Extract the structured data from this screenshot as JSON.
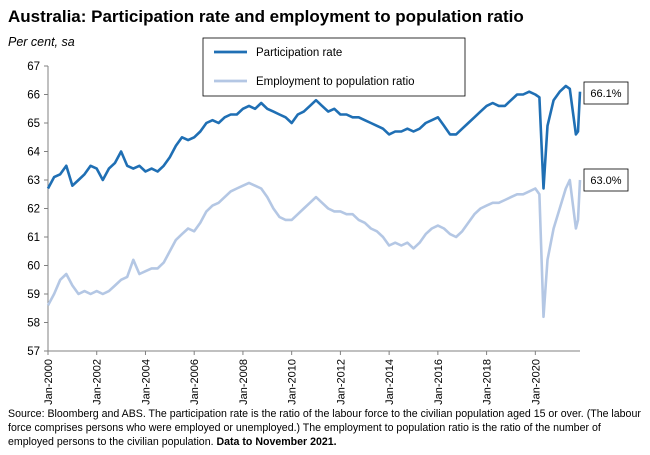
{
  "title": "Australia: Participation rate and employment to population ratio",
  "subtitle": "Per cent, sa",
  "source_note": "Source: Bloomberg and ABS.  The participation rate is the ratio of the labour force to the civilian population aged 15 or over.  (The labour force comprises persons who were employed or unemployed.)  The employment to population ratio is the ratio of the number of employed persons to the civilian population.",
  "data_note": "Data to November 2021.",
  "colors": {
    "participation": "#1f6fb4",
    "employment": "#b4c7e4",
    "axis": "#808080"
  },
  "chart_data": {
    "type": "line",
    "xlabel": "",
    "ylabel": "",
    "ylim": [
      57,
      67
    ],
    "yticks": [
      "57",
      "58",
      "59",
      "60",
      "61",
      "62",
      "63",
      "64",
      "65",
      "66",
      "67"
    ],
    "xticks": [
      "Jan-2000",
      "Jan-2002",
      "Jan-2004",
      "Jan-2006",
      "Jan-2008",
      "Jan-2010",
      "Jan-2012",
      "Jan-2014",
      "Jan-2016",
      "Jan-2018",
      "Jan-2020"
    ],
    "grid": false,
    "legend": "top-center",
    "series": [
      {
        "name": "Participation rate",
        "end_label": "66.1%",
        "points": [
          [
            "2000-01",
            62.7
          ],
          [
            "2000-04",
            63.1
          ],
          [
            "2000-07",
            63.2
          ],
          [
            "2000-10",
            63.5
          ],
          [
            "2001-01",
            62.8
          ],
          [
            "2001-04",
            63.0
          ],
          [
            "2001-07",
            63.2
          ],
          [
            "2001-10",
            63.5
          ],
          [
            "2002-01",
            63.4
          ],
          [
            "2002-04",
            63.0
          ],
          [
            "2002-07",
            63.4
          ],
          [
            "2002-10",
            63.6
          ],
          [
            "2003-01",
            64.0
          ],
          [
            "2003-04",
            63.5
          ],
          [
            "2003-07",
            63.4
          ],
          [
            "2003-10",
            63.5
          ],
          [
            "2004-01",
            63.3
          ],
          [
            "2004-04",
            63.4
          ],
          [
            "2004-07",
            63.3
          ],
          [
            "2004-10",
            63.5
          ],
          [
            "2005-01",
            63.8
          ],
          [
            "2005-04",
            64.2
          ],
          [
            "2005-07",
            64.5
          ],
          [
            "2005-10",
            64.4
          ],
          [
            "2006-01",
            64.5
          ],
          [
            "2006-04",
            64.7
          ],
          [
            "2006-07",
            65.0
          ],
          [
            "2006-10",
            65.1
          ],
          [
            "2007-01",
            65.0
          ],
          [
            "2007-04",
            65.2
          ],
          [
            "2007-07",
            65.3
          ],
          [
            "2007-10",
            65.3
          ],
          [
            "2008-01",
            65.5
          ],
          [
            "2008-04",
            65.6
          ],
          [
            "2008-07",
            65.5
          ],
          [
            "2008-10",
            65.7
          ],
          [
            "2009-01",
            65.5
          ],
          [
            "2009-04",
            65.4
          ],
          [
            "2009-07",
            65.3
          ],
          [
            "2009-10",
            65.2
          ],
          [
            "2010-01",
            65.0
          ],
          [
            "2010-04",
            65.3
          ],
          [
            "2010-07",
            65.4
          ],
          [
            "2010-10",
            65.6
          ],
          [
            "2011-01",
            65.8
          ],
          [
            "2011-04",
            65.6
          ],
          [
            "2011-07",
            65.4
          ],
          [
            "2011-10",
            65.5
          ],
          [
            "2012-01",
            65.3
          ],
          [
            "2012-04",
            65.3
          ],
          [
            "2012-07",
            65.2
          ],
          [
            "2012-10",
            65.2
          ],
          [
            "2013-01",
            65.1
          ],
          [
            "2013-04",
            65.0
          ],
          [
            "2013-07",
            64.9
          ],
          [
            "2013-10",
            64.8
          ],
          [
            "2014-01",
            64.6
          ],
          [
            "2014-04",
            64.7
          ],
          [
            "2014-07",
            64.7
          ],
          [
            "2014-10",
            64.8
          ],
          [
            "2015-01",
            64.7
          ],
          [
            "2015-04",
            64.8
          ],
          [
            "2015-07",
            65.0
          ],
          [
            "2015-10",
            65.1
          ],
          [
            "2016-01",
            65.2
          ],
          [
            "2016-04",
            64.9
          ],
          [
            "2016-07",
            64.6
          ],
          [
            "2016-10",
            64.6
          ],
          [
            "2017-01",
            64.8
          ],
          [
            "2017-04",
            65.0
          ],
          [
            "2017-07",
            65.2
          ],
          [
            "2017-10",
            65.4
          ],
          [
            "2018-01",
            65.6
          ],
          [
            "2018-04",
            65.7
          ],
          [
            "2018-07",
            65.6
          ],
          [
            "2018-10",
            65.6
          ],
          [
            "2019-01",
            65.8
          ],
          [
            "2019-04",
            66.0
          ],
          [
            "2019-07",
            66.0
          ],
          [
            "2019-10",
            66.1
          ],
          [
            "2020-01",
            66.0
          ],
          [
            "2020-03",
            65.9
          ],
          [
            "2020-05",
            62.7
          ],
          [
            "2020-07",
            64.9
          ],
          [
            "2020-10",
            65.8
          ],
          [
            "2021-01",
            66.1
          ],
          [
            "2021-04",
            66.3
          ],
          [
            "2021-06",
            66.2
          ],
          [
            "2021-09",
            64.6
          ],
          [
            "2021-10",
            64.7
          ],
          [
            "2021-11",
            66.1
          ]
        ]
      },
      {
        "name": "Employment to population ratio",
        "end_label": "63.0%",
        "points": [
          [
            "2000-01",
            58.6
          ],
          [
            "2000-04",
            59.0
          ],
          [
            "2000-07",
            59.5
          ],
          [
            "2000-10",
            59.7
          ],
          [
            "2001-01",
            59.3
          ],
          [
            "2001-04",
            59.0
          ],
          [
            "2001-07",
            59.1
          ],
          [
            "2001-10",
            59.0
          ],
          [
            "2002-01",
            59.1
          ],
          [
            "2002-04",
            59.0
          ],
          [
            "2002-07",
            59.1
          ],
          [
            "2002-10",
            59.3
          ],
          [
            "2003-01",
            59.5
          ],
          [
            "2003-04",
            59.6
          ],
          [
            "2003-07",
            60.2
          ],
          [
            "2003-10",
            59.7
          ],
          [
            "2004-01",
            59.8
          ],
          [
            "2004-04",
            59.9
          ],
          [
            "2004-07",
            59.9
          ],
          [
            "2004-10",
            60.1
          ],
          [
            "2005-01",
            60.5
          ],
          [
            "2005-04",
            60.9
          ],
          [
            "2005-07",
            61.1
          ],
          [
            "2005-10",
            61.3
          ],
          [
            "2006-01",
            61.2
          ],
          [
            "2006-04",
            61.5
          ],
          [
            "2006-07",
            61.9
          ],
          [
            "2006-10",
            62.1
          ],
          [
            "2007-01",
            62.2
          ],
          [
            "2007-04",
            62.4
          ],
          [
            "2007-07",
            62.6
          ],
          [
            "2007-10",
            62.7
          ],
          [
            "2008-01",
            62.8
          ],
          [
            "2008-04",
            62.9
          ],
          [
            "2008-07",
            62.8
          ],
          [
            "2008-10",
            62.7
          ],
          [
            "2009-01",
            62.4
          ],
          [
            "2009-04",
            62.0
          ],
          [
            "2009-07",
            61.7
          ],
          [
            "2009-10",
            61.6
          ],
          [
            "2010-01",
            61.6
          ],
          [
            "2010-04",
            61.8
          ],
          [
            "2010-07",
            62.0
          ],
          [
            "2010-10",
            62.2
          ],
          [
            "2011-01",
            62.4
          ],
          [
            "2011-04",
            62.2
          ],
          [
            "2011-07",
            62.0
          ],
          [
            "2011-10",
            61.9
          ],
          [
            "2012-01",
            61.9
          ],
          [
            "2012-04",
            61.8
          ],
          [
            "2012-07",
            61.8
          ],
          [
            "2012-10",
            61.6
          ],
          [
            "2013-01",
            61.5
          ],
          [
            "2013-04",
            61.3
          ],
          [
            "2013-07",
            61.2
          ],
          [
            "2013-10",
            61.0
          ],
          [
            "2014-01",
            60.7
          ],
          [
            "2014-04",
            60.8
          ],
          [
            "2014-07",
            60.7
          ],
          [
            "2014-10",
            60.8
          ],
          [
            "2015-01",
            60.6
          ],
          [
            "2015-04",
            60.8
          ],
          [
            "2015-07",
            61.1
          ],
          [
            "2015-10",
            61.3
          ],
          [
            "2016-01",
            61.4
          ],
          [
            "2016-04",
            61.3
          ],
          [
            "2016-07",
            61.1
          ],
          [
            "2016-10",
            61.0
          ],
          [
            "2017-01",
            61.2
          ],
          [
            "2017-04",
            61.5
          ],
          [
            "2017-07",
            61.8
          ],
          [
            "2017-10",
            62.0
          ],
          [
            "2018-01",
            62.1
          ],
          [
            "2018-04",
            62.2
          ],
          [
            "2018-07",
            62.2
          ],
          [
            "2018-10",
            62.3
          ],
          [
            "2019-01",
            62.4
          ],
          [
            "2019-04",
            62.5
          ],
          [
            "2019-07",
            62.5
          ],
          [
            "2019-10",
            62.6
          ],
          [
            "2020-01",
            62.7
          ],
          [
            "2020-03",
            62.5
          ],
          [
            "2020-05",
            58.2
          ],
          [
            "2020-07",
            60.2
          ],
          [
            "2020-10",
            61.3
          ],
          [
            "2021-01",
            62.0
          ],
          [
            "2021-04",
            62.7
          ],
          [
            "2021-06",
            63.0
          ],
          [
            "2021-09",
            61.3
          ],
          [
            "2021-10",
            61.6
          ],
          [
            "2021-11",
            63.0
          ]
        ]
      }
    ]
  }
}
